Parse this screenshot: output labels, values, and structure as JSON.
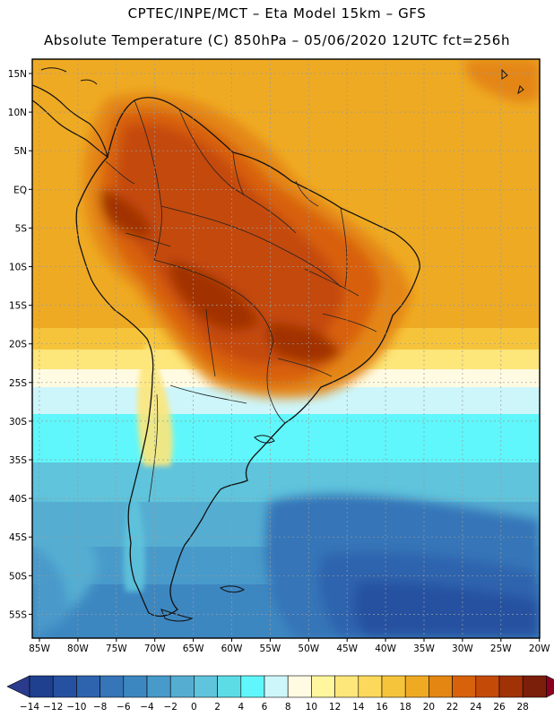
{
  "header": {
    "title_line1": "CPTEC/INPE/MCT –  Eta Model 15km – GFS",
    "title_line2": "Absolute Temperature (C) 850hPa – 05/06/2020 12UTC fct=256h"
  },
  "map": {
    "region": "South America",
    "variable": "Absolute Temperature (C) 850hPa",
    "lat_labels": [
      "15N",
      "10N",
      "5N",
      "EQ",
      "5S",
      "10S",
      "15S",
      "20S",
      "25S",
      "30S",
      "35S",
      "40S",
      "45S",
      "50S",
      "55S"
    ],
    "lon_labels": [
      "85W",
      "80W",
      "75W",
      "70W",
      "65W",
      "60W",
      "55W",
      "50W",
      "45W",
      "40W",
      "35W",
      "30W",
      "25W",
      "20W"
    ]
  },
  "colorbar": {
    "labels": [
      "-14",
      "-12",
      "-10",
      "-8",
      "-6",
      "-4",
      "-2",
      "0",
      "2",
      "4",
      "6",
      "8",
      "10",
      "12",
      "14",
      "16",
      "18",
      "20",
      "22",
      "24",
      "26",
      "28"
    ],
    "colors": [
      "#1f3f8f",
      "#2651a0",
      "#2e63ae",
      "#3575b8",
      "#3d87c1",
      "#489aca",
      "#55aed2",
      "#5fc4dc",
      "#5cdde6",
      "#5ff7fb",
      "#cdf6fb",
      "#fffbe3",
      "#fff69d",
      "#fde67a",
      "#fcd95a",
      "#f6c43b",
      "#efaa23",
      "#e48612",
      "#d8610c",
      "#c44a08",
      "#a13206",
      "#7b1e0a",
      "#8c0020",
      "#2a3a8c"
    ]
  }
}
